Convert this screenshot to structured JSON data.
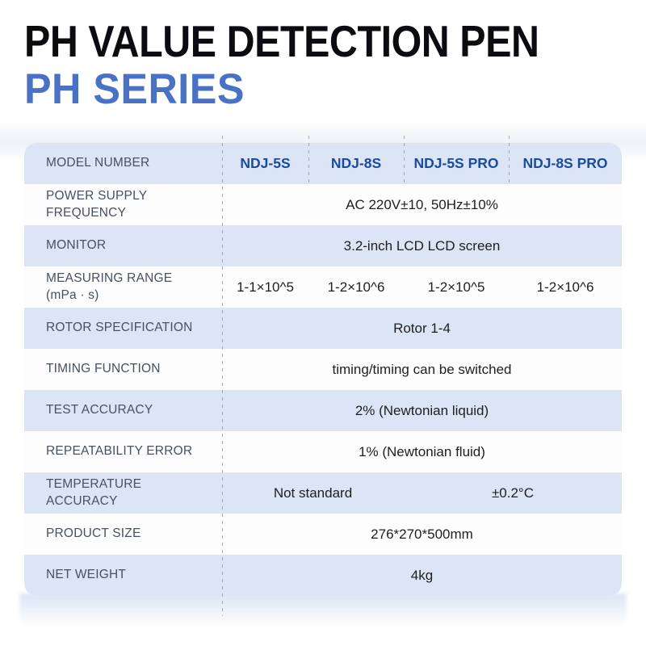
{
  "title": "PH VALUE DETECTION PEN",
  "subtitle": "PH SERIES",
  "colors": {
    "title_text": "#0b0b12",
    "subtitle_text": "#4a72c4",
    "model_text": "#1b4b9c",
    "label_text": "#47515f",
    "value_text": "#1e1e20",
    "row_blue": "#dce5f6",
    "row_white": "#fdfdfe",
    "divider": "#9fa8b4"
  },
  "table": {
    "header": {
      "label": "MODEL NUMBER",
      "models": [
        "NDJ-5S",
        "NDJ-8S",
        "NDJ-5S PRO",
        "NDJ-8S PRO"
      ]
    },
    "rows": [
      {
        "label": "POWER SUPPLY",
        "label2": "FREQUENCY",
        "value": "AC 220V±10, 50Hz±10%"
      },
      {
        "label": "MONITOR",
        "value": "3.2-inch LCD LCD screen"
      },
      {
        "label": "MEASURING RANGE",
        "label2": "(mPa · s)",
        "values": [
          "1-1×10^5",
          "1-2×10^6",
          "1-2×10^5",
          "1-2×10^6"
        ]
      },
      {
        "label": "ROTOR SPECIFICATION",
        "value": "Rotor 1-4"
      },
      {
        "label": "TIMING FUNCTION",
        "value": "timing/timing can be switched"
      },
      {
        "label": "TEST ACCURACY",
        "value": "2% (Newtonian liquid)"
      },
      {
        "label": "REPEATABILITY ERROR",
        "value": "1% (Newtonian fluid)"
      },
      {
        "label": "TEMPERATURE",
        "label2": "ACCURACY",
        "value_left": "Not standard",
        "value_right": "±0.2°C"
      },
      {
        "label": "PRODUCT SIZE",
        "value": "276*270*500mm"
      },
      {
        "label": "NET WEIGHT",
        "value": "4kg"
      }
    ]
  }
}
